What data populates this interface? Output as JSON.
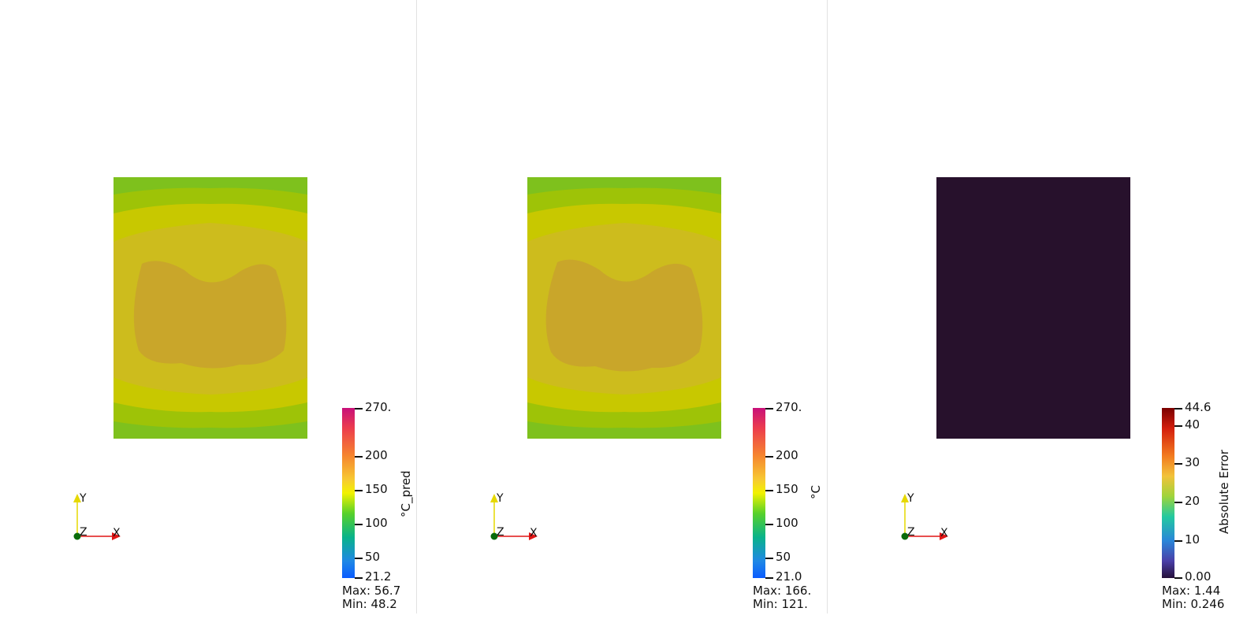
{
  "viewports": [
    {
      "colorbar": {
        "title": "°C_pred",
        "ticks": [
          "270.",
          "200",
          "150",
          "100",
          "50",
          "21.2"
        ],
        "max_text": "Max: 56.7",
        "min_text": "Min: 48.2"
      },
      "axes": {
        "x": "X",
        "y": "Y",
        "z": "Z"
      }
    },
    {
      "colorbar": {
        "title": "°C",
        "ticks": [
          "270.",
          "200",
          "150",
          "100",
          "50",
          "21.0"
        ],
        "max_text": "Max: 166.",
        "min_text": "Min: 121."
      },
      "axes": {
        "x": "X",
        "y": "Y",
        "z": "Z"
      }
    },
    {
      "colorbar": {
        "title": "Absolute Error",
        "ticks": [
          "44.6",
          "40",
          "30",
          "20",
          "10",
          "0.00"
        ],
        "max_text": "Max: 1.44",
        "min_text": "Min: 0.246"
      },
      "axes": {
        "x": "X",
        "y": "Y",
        "z": "Z"
      }
    }
  ],
  "colors": {
    "temp_outer": "#7ec11d",
    "temp_band2": "#9ec307",
    "temp_band3": "#c8c800",
    "temp_band4": "#cdbc1d",
    "temp_core": "#c9a62a",
    "error_fill": "#27112c",
    "axis_x": "#e01515",
    "axis_y": "#e6d800",
    "axis_origin": "#0a6b0a"
  }
}
